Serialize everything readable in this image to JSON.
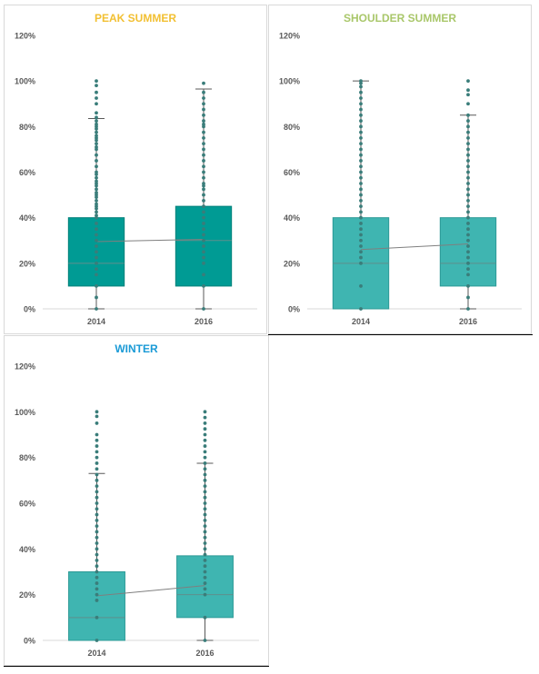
{
  "chart_data": [
    {
      "type": "boxplot",
      "title": "PEAK SUMMER",
      "title_color": "#f2c033",
      "box_color": "#009b94",
      "box_stroke": "#00807a",
      "point_color": "#3a7d7a",
      "mean_line_color": "#7f7f7f",
      "categories": [
        "2014",
        "2016"
      ],
      "ylim": [
        0,
        120
      ],
      "yticks": [
        "0%",
        "20%",
        "40%",
        "60%",
        "80%",
        "100%",
        "120%"
      ],
      "boxes": [
        {
          "q1": 10,
          "median": 20,
          "q3": 40,
          "whisker_low": 0,
          "whisker_high": 83.5,
          "mean": 29.5,
          "points": [
            0,
            5,
            10,
            15,
            17.5,
            20,
            22.5,
            25,
            27.5,
            30,
            32.5,
            35,
            37.5,
            40,
            41,
            42.5,
            44,
            45,
            46,
            47.5,
            49,
            50,
            51,
            52.5,
            54,
            55,
            56,
            57.5,
            59,
            60,
            62.5,
            65,
            67.5,
            70,
            71,
            72.5,
            74,
            75,
            76,
            77.5,
            79,
            80,
            81,
            82.5,
            84,
            86,
            90,
            92.5,
            95,
            98,
            100
          ]
        },
        {
          "q1": 10,
          "median": 30,
          "q3": 45,
          "whisker_low": 0,
          "whisker_high": 96.5,
          "mean": 30.5,
          "points": [
            0,
            10,
            15,
            20,
            22.5,
            25,
            27.5,
            30,
            32.5,
            35,
            37.5,
            40,
            42.5,
            45,
            47.5,
            50,
            52.5,
            54,
            55,
            57.5,
            60,
            62.5,
            65,
            67.5,
            70,
            72.5,
            75,
            77.5,
            80,
            81,
            82.5,
            85,
            87.5,
            90,
            92.5,
            95,
            99
          ]
        }
      ]
    },
    {
      "type": "boxplot",
      "title": "SHOULDER SUMMER",
      "title_color": "#a9c76a",
      "box_color": "#3fb5b1",
      "box_stroke": "#2c9a96",
      "point_color": "#3a7d7a",
      "mean_line_color": "#7f7f7f",
      "categories": [
        "2014",
        "2016"
      ],
      "ylim": [
        0,
        120
      ],
      "yticks": [
        "0%",
        "20%",
        "40%",
        "60%",
        "80%",
        "100%",
        "120%"
      ],
      "boxes": [
        {
          "q1": 0,
          "median": 20,
          "q3": 40,
          "whisker_low": 0,
          "whisker_high": 100,
          "mean": 26,
          "points": [
            0,
            10,
            20,
            22.5,
            25,
            27.5,
            30,
            32.5,
            35,
            37.5,
            40,
            42.5,
            45,
            47.5,
            50,
            52.5,
            55,
            57.5,
            60,
            62.5,
            65,
            67.5,
            70,
            72.5,
            75,
            77.5,
            80,
            82.5,
            85,
            87.5,
            90,
            92.5,
            95,
            97.5,
            99,
            100
          ]
        },
        {
          "q1": 10,
          "median": 20,
          "q3": 40,
          "whisker_low": 0,
          "whisker_high": 85,
          "mean": 28.5,
          "points": [
            0,
            5,
            10,
            15,
            17.5,
            20,
            22.5,
            25,
            27.5,
            30,
            32.5,
            35,
            37.5,
            40,
            42.5,
            45,
            47.5,
            50,
            52.5,
            55,
            57.5,
            60,
            62.5,
            65,
            67.5,
            70,
            72.5,
            75,
            77.5,
            80,
            82.5,
            85,
            90,
            94,
            96,
            100
          ]
        }
      ]
    },
    {
      "type": "boxplot",
      "title": "WINTER",
      "title_color": "#1a9ad6",
      "box_color": "#3fb5b1",
      "box_stroke": "#2c9a96",
      "point_color": "#3a7d7a",
      "mean_line_color": "#7f7f7f",
      "categories": [
        "2014",
        "2016"
      ],
      "ylim": [
        0,
        120
      ],
      "yticks": [
        "0%",
        "20%",
        "40%",
        "60%",
        "80%",
        "100%",
        "120%"
      ],
      "boxes": [
        {
          "q1": 0,
          "median": 10,
          "q3": 30,
          "whisker_low": 0,
          "whisker_high": 73,
          "mean": 19.5,
          "points": [
            0,
            10,
            17.5,
            20,
            22.5,
            25,
            27.5,
            30,
            32.5,
            35,
            37.5,
            40,
            42.5,
            45,
            47.5,
            50,
            52.5,
            55,
            57.5,
            60,
            62.5,
            65,
            67.5,
            70,
            72.5,
            75,
            77.5,
            80,
            82.5,
            85,
            87.5,
            90,
            95,
            98,
            100
          ]
        },
        {
          "q1": 10,
          "median": 20,
          "q3": 37,
          "whisker_low": 0,
          "whisker_high": 77.5,
          "mean": 24,
          "points": [
            0,
            10,
            20,
            22.5,
            25,
            27.5,
            30,
            32.5,
            35,
            37.5,
            40,
            42.5,
            45,
            47.5,
            50,
            52.5,
            55,
            57.5,
            60,
            62.5,
            65,
            67.5,
            70,
            72.5,
            75,
            77.5,
            80,
            82.5,
            85,
            87.5,
            90,
            92.5,
            95,
            97.5,
            100
          ]
        }
      ]
    }
  ]
}
